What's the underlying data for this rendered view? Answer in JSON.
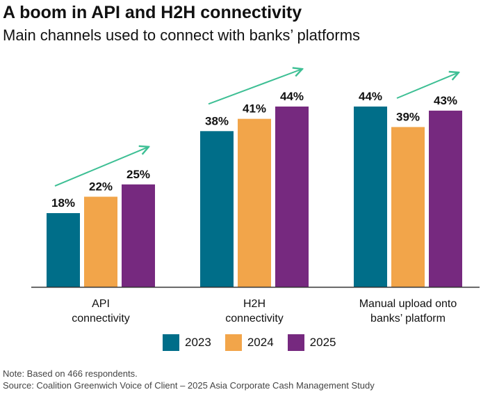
{
  "title": "A boom in API and H2H connectivity",
  "subtitle": "Main channels used to connect with banks’ platforms",
  "colors": {
    "2023": "#006e89",
    "2024": "#f2a54a",
    "2025": "#76297f",
    "arrow": "#3dbf94",
    "axis": "#333333"
  },
  "chart_data": {
    "type": "bar",
    "categories": [
      [
        "API",
        "connectivity"
      ],
      [
        "H2H",
        "connectivity"
      ],
      [
        "Manual upload onto",
        "banks’ platform"
      ]
    ],
    "series": [
      {
        "name": "2023",
        "values": [
          18,
          38,
          44
        ]
      },
      {
        "name": "2024",
        "values": [
          22,
          41,
          39
        ]
      },
      {
        "name": "2025",
        "values": [
          25,
          44,
          43
        ]
      }
    ],
    "value_format": "%",
    "ylim": [
      0,
      44
    ],
    "grid": false,
    "legend_placement": "bottom-center",
    "annotations": "upward trend arrow above each group"
  },
  "legend": [
    "2023",
    "2024",
    "2025"
  ],
  "note": "Note: Based on 466 respondents.",
  "source": "Source: Coalition Greenwich Voice of Client – 2025 Asia Corporate Cash Management Study"
}
